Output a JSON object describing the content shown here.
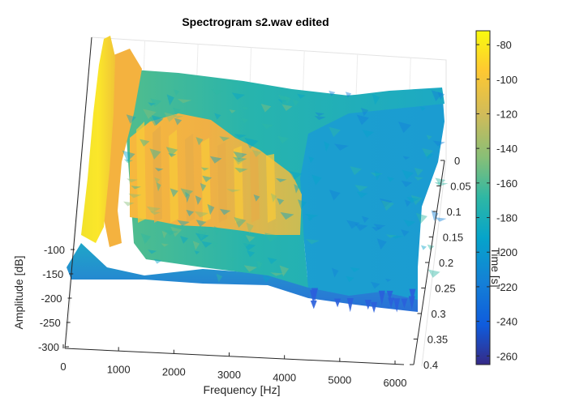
{
  "chart_data": {
    "type": "surface",
    "title": "Spectrogram s2.wav edited",
    "xlabel": "Frequency [Hz]",
    "ylabel": "Amplitude [dB]",
    "zlabel": "Time [s]",
    "x_ticks": [
      0,
      1000,
      2000,
      3000,
      4000,
      5000,
      6000
    ],
    "y_ticks": [
      -100,
      -150,
      -200,
      -250,
      -300
    ],
    "z_ticks": [
      0,
      0.05,
      0.1,
      0.15,
      0.2,
      0.25,
      0.3,
      0.35,
      0.4
    ],
    "xlim": [
      0,
      6250
    ],
    "ylim": [
      -300,
      -70
    ],
    "zlim": [
      0,
      0.4
    ],
    "grid": true,
    "colormap": "parula",
    "colorbar": {
      "ticks": [
        -80,
        -100,
        -120,
        -140,
        -160,
        -180,
        -200,
        -220,
        -240,
        -260
      ],
      "range": [
        -265,
        -72
      ]
    },
    "description_ridges": [
      {
        "freq_hz": 350,
        "amplitude_db": -75
      },
      {
        "freq_hz": 1100,
        "amplitude_db": -105
      },
      {
        "freq_hz": 2700,
        "amplitude_db": -120
      },
      {
        "freq_hz": 4300,
        "amplitude_db": -165
      }
    ]
  },
  "colors": {
    "parula": [
      "#352a87",
      "#0f5cdd",
      "#1481d6",
      "#06a4ca",
      "#2eb7a4",
      "#87bf77",
      "#d1bb59",
      "#fec832",
      "#f9fb0e"
    ]
  }
}
